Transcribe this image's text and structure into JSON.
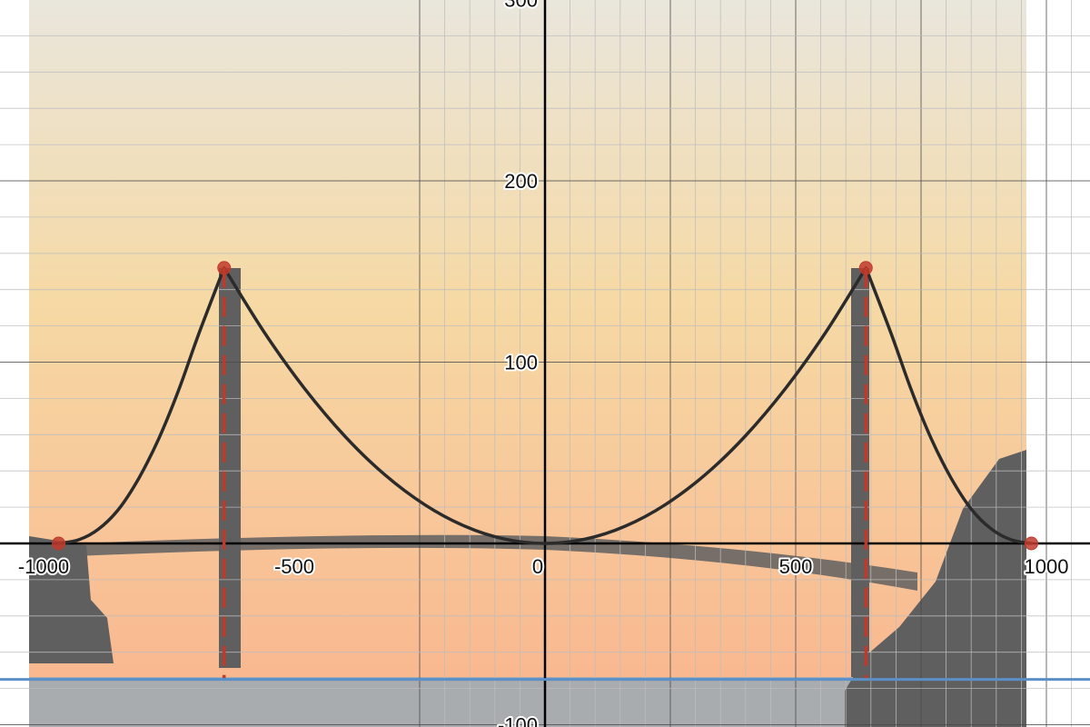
{
  "chart_data": {
    "type": "line",
    "title": "",
    "xlabel": "",
    "ylabel": "",
    "xlim": [
      -1087,
      1087
    ],
    "ylim": [
      -100,
      325
    ],
    "grid": true,
    "x_ticks": [
      {
        "value": -1000,
        "label": "-1000"
      },
      {
        "value": -500,
        "label": "-500"
      },
      {
        "value": 0,
        "label": "0"
      },
      {
        "value": 500,
        "label": "500"
      },
      {
        "value": 1000,
        "label": "1000"
      }
    ],
    "y_ticks": [
      {
        "value": 300,
        "label": "300"
      },
      {
        "value": 200,
        "label": "200"
      },
      {
        "value": 100,
        "label": "100"
      },
      {
        "value": -100,
        "label": "-100"
      }
    ],
    "series": [
      {
        "role": "main-cable-left",
        "color": "#2b2b2b",
        "style": "solid",
        "x": [
          -970,
          -930,
          -890,
          -850,
          -810,
          -770,
          -730,
          -690,
          -640
        ],
        "y": [
          0,
          2,
          8,
          19,
          36,
          58,
          85,
          116,
          152
        ]
      },
      {
        "role": "main-cable-center",
        "color": "#2b2b2b",
        "style": "solid",
        "x": [
          -640,
          -560,
          -480,
          -400,
          -320,
          -240,
          -160,
          -80,
          0,
          80,
          160,
          240,
          320,
          400,
          480,
          560,
          640
        ],
        "y": [
          152,
          116.5,
          85.6,
          59.4,
          38,
          21.4,
          9.5,
          2.4,
          0,
          2.4,
          9.5,
          21.4,
          38,
          59.4,
          85.6,
          116.5,
          152
        ]
      },
      {
        "role": "main-cable-right",
        "color": "#2b2b2b",
        "style": "solid",
        "x": [
          640,
          690,
          730,
          770,
          810,
          850,
          890,
          930,
          970
        ],
        "y": [
          152,
          116,
          85,
          58,
          36,
          19,
          8,
          2,
          0
        ]
      },
      {
        "role": "tower-left",
        "color": "#c0392b",
        "style": "dashed",
        "x": [
          -640,
          -640
        ],
        "y": [
          152,
          -75
        ]
      },
      {
        "role": "tower-right",
        "color": "#c0392b",
        "style": "dashed",
        "x": [
          640,
          640
        ],
        "y": [
          152,
          -75
        ]
      },
      {
        "role": "water-line",
        "color": "#5b8fc7",
        "style": "solid",
        "x": [
          -1087,
          1087
        ],
        "y": [
          -75,
          -75
        ]
      }
    ],
    "points": [
      {
        "x": -970,
        "y": 0,
        "color": "#c0392b"
      },
      {
        "x": -640,
        "y": 152,
        "color": "#c0392b"
      },
      {
        "x": 640,
        "y": 152,
        "color": "#c0392b"
      },
      {
        "x": 970,
        "y": 0,
        "color": "#c0392b"
      }
    ],
    "colors": {
      "axis": "#000000",
      "grid_major": "#4a4a4a",
      "grid_minor": "#bdbdbd",
      "sky_top": "#e9e6dc",
      "sky_mid": "#f6d9a4",
      "sky_low": "#f9b890",
      "water": "#a9acaf",
      "silhouette": "#5f5f5f"
    }
  }
}
